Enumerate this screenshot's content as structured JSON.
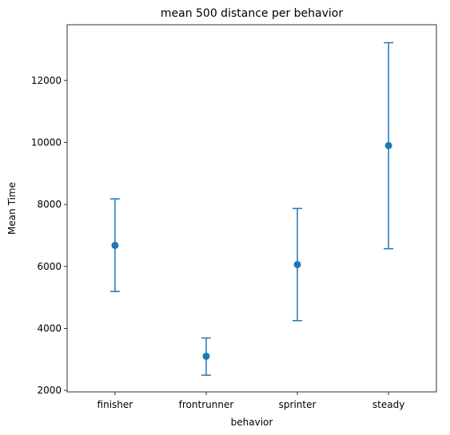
{
  "chart_data": {
    "type": "errorbar",
    "title": "mean 500 distance per behavior",
    "xlabel": "behavior",
    "ylabel": "Mean Time",
    "categories": [
      "finisher",
      "frontrunner",
      "sprinter",
      "steady"
    ],
    "values": [
      6680,
      3100,
      6060,
      9900
    ],
    "lower": [
      5190,
      2490,
      4250,
      6570
    ],
    "upper": [
      8180,
      3690,
      7870,
      13220
    ],
    "ylim": [
      1950,
      13800
    ],
    "yticks": [
      2000,
      4000,
      6000,
      8000,
      10000,
      12000
    ],
    "grid": false,
    "color": "#1f77b4"
  }
}
